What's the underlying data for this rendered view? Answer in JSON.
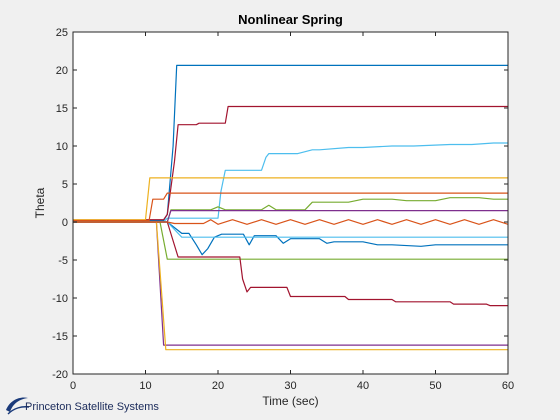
{
  "colors": {
    "background": "#f0f0f0",
    "axes_bg": "#ffffff",
    "series": [
      "#0072BD",
      "#D95319",
      "#EDB120",
      "#7E2F8E",
      "#77AC30",
      "#4DBEEE",
      "#A2142F"
    ]
  },
  "logo": {
    "text": "Princeton Satellite Systems",
    "icon": "psss-swoosh-icon"
  },
  "chart_data": {
    "type": "line",
    "title": "Nonlinear Spring",
    "xlabel": "Time (sec)",
    "ylabel": "Theta",
    "xlim": [
      0,
      60
    ],
    "ylim": [
      -20,
      25
    ],
    "xticks": [
      0,
      10,
      20,
      30,
      40,
      50,
      60
    ],
    "yticks": [
      -20,
      -15,
      -10,
      -5,
      0,
      5,
      10,
      15,
      20,
      25
    ],
    "grid": false,
    "legend": "none",
    "series": [
      {
        "color": "#0072BD",
        "x": [
          0,
          9.5,
          10,
          12.5,
          13,
          13.8,
          14.3,
          60
        ],
        "y": [
          0,
          0,
          0.2,
          0.2,
          1,
          10,
          20.6,
          20.6
        ]
      },
      {
        "color": "#A2142F",
        "x": [
          0,
          9.5,
          10,
          12.5,
          13,
          14,
          14.5,
          17,
          17.4,
          21,
          21.4,
          60
        ],
        "y": [
          0,
          0,
          0.3,
          0.3,
          1,
          8,
          12.8,
          12.8,
          13,
          13,
          15.2,
          15.2
        ]
      },
      {
        "color": "#4DBEEE",
        "x": [
          0,
          12.5,
          13,
          20,
          20.4,
          21,
          26,
          26.6,
          27,
          31,
          33,
          34,
          38,
          40,
          44,
          47,
          52,
          55,
          58,
          60
        ],
        "y": [
          0,
          0,
          0.5,
          0.5,
          4,
          6.8,
          6.8,
          8.5,
          9,
          9,
          9.5,
          9.5,
          9.8,
          9.8,
          10,
          10,
          10.2,
          10.2,
          10.4,
          10.4
        ]
      },
      {
        "color": "#EDB120",
        "x": [
          0,
          10,
          10.6,
          60
        ],
        "y": [
          0.3,
          0.3,
          5.8,
          5.8
        ]
      },
      {
        "color": "#D95319",
        "x": [
          0,
          10.5,
          11,
          12.5,
          13,
          60
        ],
        "y": [
          0.2,
          0.2,
          3,
          3,
          3.8,
          3.8
        ]
      },
      {
        "color": "#77AC30",
        "x": [
          0,
          13,
          13.5,
          19,
          20,
          21,
          26,
          27,
          28,
          32,
          33,
          34,
          38,
          40,
          44,
          46,
          50,
          52,
          56,
          58,
          60
        ],
        "y": [
          0,
          0,
          1.6,
          1.6,
          2,
          1.6,
          1.6,
          2.2,
          1.6,
          1.6,
          2.6,
          2.6,
          2.6,
          3,
          3,
          2.8,
          2.8,
          3.2,
          3.2,
          3,
          3
        ]
      },
      {
        "color": "#7E2F8E",
        "x": [
          0,
          13,
          13.5,
          60
        ],
        "y": [
          0,
          0,
          1.5,
          1.5
        ]
      },
      {
        "color": "#0072BD",
        "x": [
          0,
          13,
          15,
          16,
          17,
          17.8,
          18.6,
          19.5,
          20.5,
          21.5,
          23.5,
          24.3,
          25,
          26,
          28,
          29,
          30,
          34,
          35,
          36,
          40,
          42,
          44,
          48,
          50,
          54,
          60
        ],
        "y": [
          0,
          0,
          -1.5,
          -1.5,
          -3,
          -4.3,
          -3.5,
          -2,
          -1.6,
          -1.6,
          -1.6,
          -3,
          -1.8,
          -1.8,
          -1.8,
          -2.8,
          -2.2,
          -2.2,
          -2.8,
          -2.6,
          -2.6,
          -3,
          -3,
          -3.2,
          -3,
          -3,
          -3
        ]
      },
      {
        "color": "#4DBEEE",
        "x": [
          0,
          13,
          15,
          60
        ],
        "y": [
          0,
          0,
          -2,
          -2
        ]
      },
      {
        "color": "#77AC30",
        "x": [
          0,
          12,
          13,
          60
        ],
        "y": [
          0,
          0,
          -4.9,
          -4.9
        ]
      },
      {
        "color": "#A2142F",
        "x": [
          0,
          13,
          14.5,
          23,
          23.4,
          24,
          24.5,
          29.5,
          30,
          37.5,
          38,
          44,
          44.5,
          52,
          52.5,
          57,
          57.5,
          60
        ],
        "y": [
          0,
          0,
          -4.6,
          -4.6,
          -7.5,
          -9.2,
          -8.6,
          -8.6,
          -9.8,
          -9.8,
          -10.2,
          -10.2,
          -10.5,
          -10.5,
          -10.8,
          -10.8,
          -11,
          -11
        ]
      },
      {
        "color": "#7E2F8E",
        "x": [
          0,
          11.5,
          12.5,
          60
        ],
        "y": [
          0,
          0,
          -16.2,
          -16.2
        ]
      },
      {
        "color": "#EDB120",
        "x": [
          0,
          11.5,
          12.8,
          60
        ],
        "y": [
          0,
          0,
          -16.8,
          -16.8
        ]
      },
      {
        "color": "#D95319",
        "x": [
          0,
          13,
          14,
          18,
          19,
          20,
          22,
          24,
          26,
          28,
          30,
          32,
          34,
          36,
          38,
          40,
          42,
          44,
          46,
          48,
          50,
          52,
          54,
          56,
          58,
          60
        ],
        "y": [
          0,
          0,
          -0.2,
          -0.2,
          0.3,
          -0.3,
          0.3,
          -0.3,
          0.3,
          -0.3,
          0.3,
          -0.3,
          0.3,
          -0.3,
          0.3,
          -0.3,
          0.3,
          -0.3,
          0.3,
          -0.3,
          0.3,
          -0.3,
          0.3,
          -0.3,
          0.3,
          -0.3
        ]
      }
    ]
  }
}
